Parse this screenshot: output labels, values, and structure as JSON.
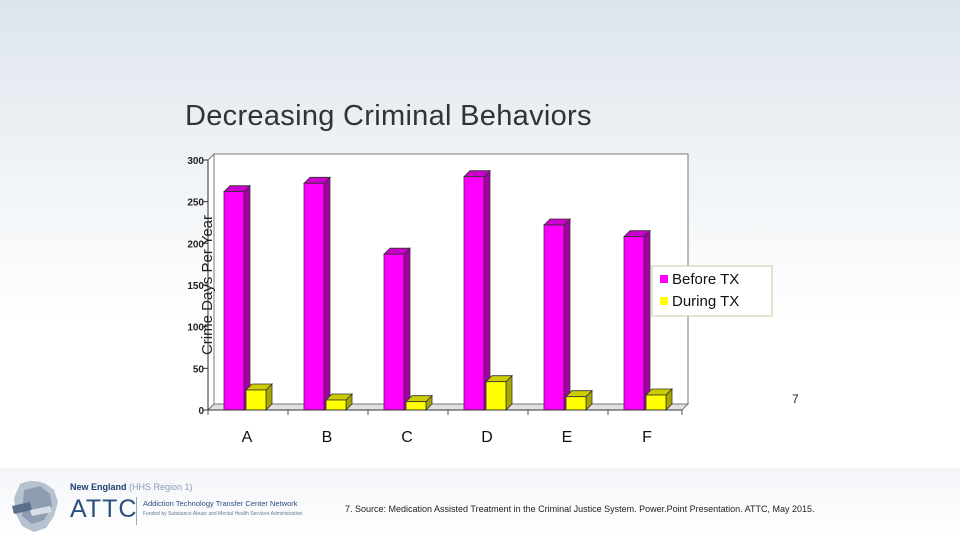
{
  "slide": {
    "title": "Decreasing Criminal Behaviors",
    "page_number": "7",
    "source": "7. Source: Medication Assisted Treatment in the Criminal Justice System. Power.Point Presentation. ATTC, May 2015."
  },
  "logo": {
    "region": "New England",
    "region_sub": "(HHS Region 1)",
    "name": "ATTC",
    "line1": "Addiction Technology Transfer Center Network",
    "line2": "Funded by Substance Abuse and Mental Health Services Administration"
  },
  "colors": {
    "before": "#ff00ff",
    "during": "#ffff00"
  },
  "chart_data": {
    "type": "bar",
    "title": "",
    "xlabel": "",
    "ylabel": "Crime Days Per Year",
    "categories": [
      "A",
      "B",
      "C",
      "D",
      "E",
      "F"
    ],
    "ylim": [
      0,
      300
    ],
    "yticks": [
      0,
      50,
      100,
      150,
      200,
      250,
      300
    ],
    "grid": false,
    "legend_position": "right",
    "series": [
      {
        "name": "Before TX",
        "values": [
          262,
          272,
          187,
          280,
          222,
          208
        ]
      },
      {
        "name": "During TX",
        "values": [
          24,
          12,
          10,
          34,
          16,
          18
        ]
      }
    ]
  }
}
